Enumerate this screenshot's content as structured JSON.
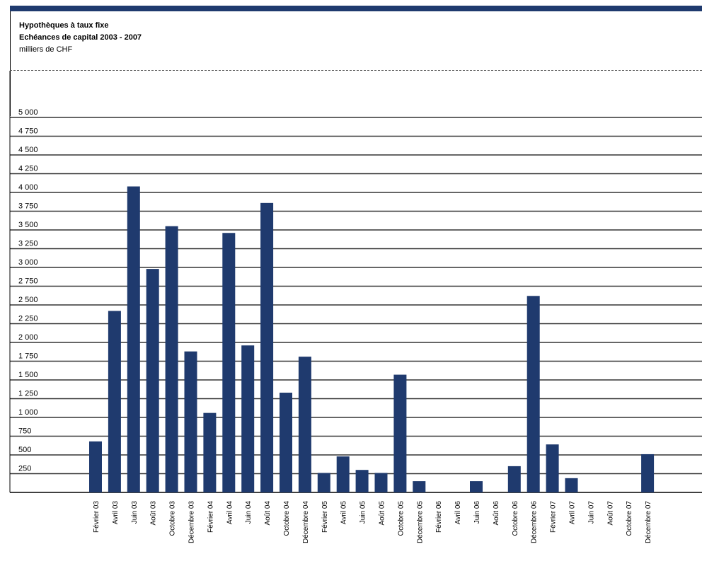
{
  "chart_data": {
    "type": "bar",
    "title": "Hypothèques à taux fixe",
    "subtitle": "Echéances de capital 2003 - 2007",
    "ylabel": "milliers de CHF",
    "ylim": [
      0,
      5000
    ],
    "yticks": [
      250,
      500,
      750,
      1000,
      1250,
      1500,
      1750,
      2000,
      2250,
      2500,
      2750,
      3000,
      3250,
      3500,
      3750,
      4000,
      4250,
      4500,
      4750,
      5000
    ],
    "ytick_labels": [
      "250",
      "500",
      "750",
      "1 000",
      "1 250",
      "1 500",
      "1 750",
      "2 000",
      "2 250",
      "2 500",
      "2 750",
      "3 000",
      "3 250",
      "3 500",
      "3 750",
      "4 000",
      "4 250",
      "4 500",
      "4 750",
      "5 000"
    ],
    "categories": [
      "Février 03",
      "Avril 03",
      "Juin 03",
      "Août 03",
      "Octobre 03",
      "Décembre 03",
      "Février 04",
      "Avril 04",
      "Juin 04",
      "Août 04",
      "Octobre 04",
      "Décembre 04",
      "Février 05",
      "Avril 05",
      "Juin 05",
      "Août 05",
      "Octobre 05",
      "Décembre 05",
      "Février 06",
      "Avril 06",
      "Juin 06",
      "Août 06",
      "Octobre 06",
      "Décembre 06",
      "Février 07",
      "Avril 07",
      "Juin 07",
      "Août 07",
      "Octobre 07",
      "Décembre 07"
    ],
    "values": [
      680,
      2420,
      4080,
      2980,
      3550,
      1880,
      1060,
      3460,
      1960,
      3860,
      1330,
      1810,
      260,
      480,
      300,
      260,
      1570,
      150,
      0,
      0,
      150,
      0,
      350,
      2620,
      640,
      190,
      0,
      0,
      0,
      510
    ],
    "bar_color": "#1f3a6e",
    "grid": true,
    "legend": "none"
  }
}
